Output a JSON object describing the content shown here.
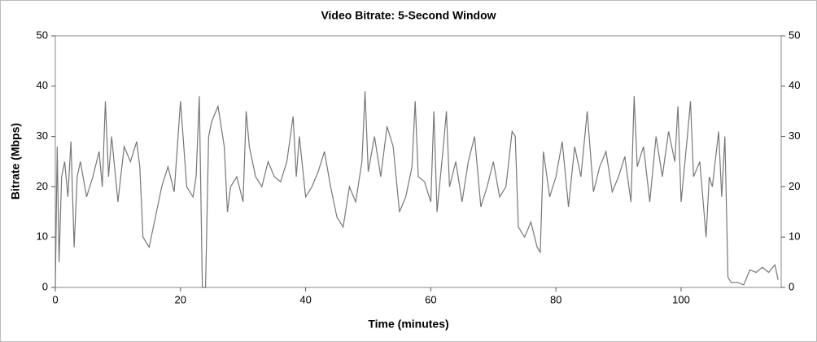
{
  "chart_data": {
    "type": "line",
    "title": "Video Bitrate: 5-Second Window",
    "x_label": "Time (minutes)",
    "y_label": "Bitrate (Mbps)",
    "x": [
      0,
      0.3,
      0.6,
      1,
      1.5,
      2,
      2.5,
      3,
      3.5,
      4,
      5,
      6,
      7,
      7.5,
      8,
      8.5,
      9,
      10,
      11,
      12,
      13,
      13.5,
      14,
      15,
      16,
      17,
      18,
      19,
      20,
      21,
      22,
      22.5,
      23,
      23.5,
      24,
      24.5,
      25,
      26,
      27,
      27.5,
      28,
      29,
      30,
      30.5,
      31,
      32,
      33,
      34,
      35,
      36,
      37,
      38,
      38.5,
      39,
      40,
      41,
      42,
      43,
      44,
      45,
      46,
      47,
      48,
      49,
      49.5,
      50,
      51,
      52,
      53,
      54,
      55,
      56,
      57,
      57.5,
      58,
      59,
      60,
      60.5,
      61,
      62,
      62.5,
      63,
      64,
      65,
      66,
      67,
      68,
      69,
      70,
      71,
      72,
      73,
      73.5,
      74,
      75,
      76,
      77,
      77.5,
      78,
      79,
      80,
      81,
      82,
      83,
      84,
      85,
      86,
      87,
      88,
      89,
      90,
      91,
      92,
      92.5,
      93,
      94,
      95,
      96,
      97,
      98,
      99,
      99.5,
      100,
      101,
      101.5,
      102,
      103,
      104,
      104.5,
      105,
      106,
      106.5,
      107,
      107.5,
      108,
      109,
      110,
      110.5,
      111,
      112,
      113,
      114,
      115,
      115.5
    ],
    "series": [
      {
        "name": "Video Bitrate",
        "color": "#777777",
        "values": [
          0,
          28,
          5,
          22,
          25,
          18,
          29,
          8,
          22,
          25,
          18,
          22,
          27,
          20,
          37,
          22,
          30,
          17,
          28,
          25,
          29,
          24,
          10,
          8,
          14,
          20,
          24,
          19,
          37,
          20,
          18,
          22,
          38,
          0,
          0,
          30,
          33,
          36,
          28,
          15,
          20,
          22,
          17,
          35,
          28,
          22,
          20,
          25,
          22,
          21,
          25,
          34,
          22,
          30,
          18,
          20,
          23,
          27,
          20,
          14,
          12,
          20,
          17,
          25,
          39,
          23,
          30,
          22,
          32,
          28,
          15,
          18,
          24,
          37,
          22,
          21,
          17,
          35,
          15,
          28,
          35,
          20,
          25,
          17,
          25,
          30,
          16,
          20,
          25,
          18,
          20,
          31,
          30,
          12,
          10,
          13,
          8,
          7,
          27,
          18,
          22,
          29,
          16,
          28,
          22,
          35,
          19,
          24,
          27,
          19,
          22,
          26,
          17,
          38,
          24,
          28,
          17,
          30,
          22,
          31,
          25,
          36,
          17,
          30,
          37,
          22,
          25,
          10,
          22,
          20,
          31,
          18,
          30,
          2,
          1,
          1,
          0.5,
          2,
          3.5,
          3,
          4,
          3,
          4.5,
          1.5
        ]
      }
    ],
    "xlim": [
      0,
      116
    ],
    "ylim": [
      0,
      50
    ],
    "y2lim": [
      0,
      50
    ],
    "xticks": [
      0,
      20,
      40,
      60,
      80,
      100
    ],
    "yticks": [
      0,
      10,
      20,
      30,
      40,
      50
    ],
    "y2ticks": [
      0,
      10,
      20,
      30,
      40,
      50
    ]
  }
}
